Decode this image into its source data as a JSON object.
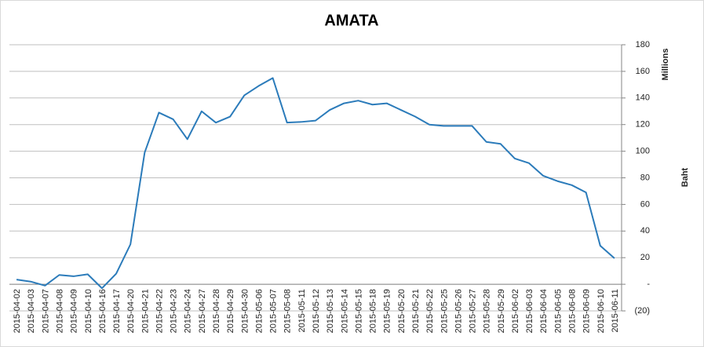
{
  "chart_data": {
    "type": "line",
    "title": "AMATA",
    "y_label": "Baht",
    "y_units_label": "Millions",
    "categories": [
      "2015-04-02",
      "2015-04-03",
      "2015-04-07",
      "2015-04-08",
      "2015-04-09",
      "2015-04-10",
      "2015-04-16",
      "2015-04-17",
      "2015-04-20",
      "2015-04-21",
      "2015-04-22",
      "2015-04-23",
      "2015-04-24",
      "2015-04-27",
      "2015-04-28",
      "2015-04-29",
      "2015-04-30",
      "2015-05-06",
      "2015-05-07",
      "2015-05-08",
      "2015-05-11",
      "2015-05-12",
      "2015-05-13",
      "2015-05-14",
      "2015-05-15",
      "2015-05-18",
      "2015-05-19",
      "2015-05-20",
      "2015-05-21",
      "2015-05-22",
      "2015-05-25",
      "2015-05-26",
      "2015-05-27",
      "2015-05-28",
      "2015-05-29",
      "2015-06-02",
      "2015-06-03",
      "2015-06-04",
      "2015-06-05",
      "2015-06-08",
      "2015-06-09",
      "2015-06-10",
      "2015-06-11"
    ],
    "values": [
      3.5,
      2,
      -1,
      7,
      6,
      7.5,
      -3,
      8,
      30,
      99,
      129,
      124,
      109,
      130,
      121.5,
      126,
      142,
      149,
      155,
      121.5,
      122,
      123,
      131,
      136,
      138,
      135,
      136,
      131,
      126,
      120,
      119,
      119,
      119,
      107,
      105.5,
      94.5,
      91,
      81.5,
      77.5,
      74.5,
      69,
      29,
      19.5
    ],
    "color": "#2b7bba",
    "ylim": [
      -20,
      180
    ],
    "yticks": [
      {
        "value": -20,
        "label": "(20)"
      },
      {
        "value": 0,
        "label": "-"
      },
      20,
      40,
      60,
      80,
      100,
      120,
      140,
      160,
      180
    ],
    "grid": true,
    "y_axis_side": "right"
  }
}
